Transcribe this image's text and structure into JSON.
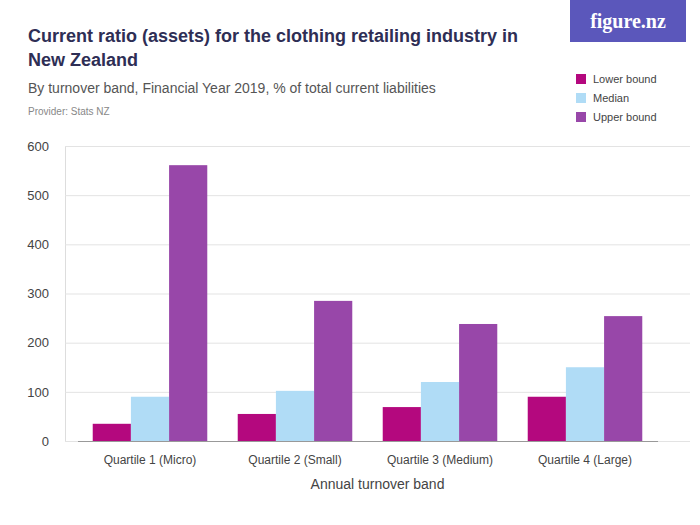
{
  "chart_data": {
    "type": "bar",
    "title": "Current ratio (assets) for the clothing retailing industry in New Zealand",
    "subtitle": "By turnover band, Financial Year 2019, % of total current liabilities",
    "source": "Provider: Stats NZ",
    "logo": "figure.nz",
    "x_label": "Annual turnover band",
    "categories": [
      "Quartile 1 (Micro)",
      "Quartile 2 (Small)",
      "Quartile 3 (Medium)",
      "Quartile 4 (Large)"
    ],
    "series": [
      {
        "name": "Lower bound",
        "color": "#b4087e",
        "values": [
          35,
          55,
          69,
          90
        ]
      },
      {
        "name": "Median",
        "color": "#b0dcf6",
        "values": [
          90,
          102,
          120,
          150
        ]
      },
      {
        "name": "Upper bound",
        "color": "#9847a9",
        "values": [
          561,
          285,
          238,
          254
        ]
      }
    ],
    "ylim": [
      0,
      600
    ],
    "yticks": [
      0,
      100,
      200,
      300,
      400,
      500,
      600
    ],
    "grid": true,
    "legend": "top-right"
  }
}
